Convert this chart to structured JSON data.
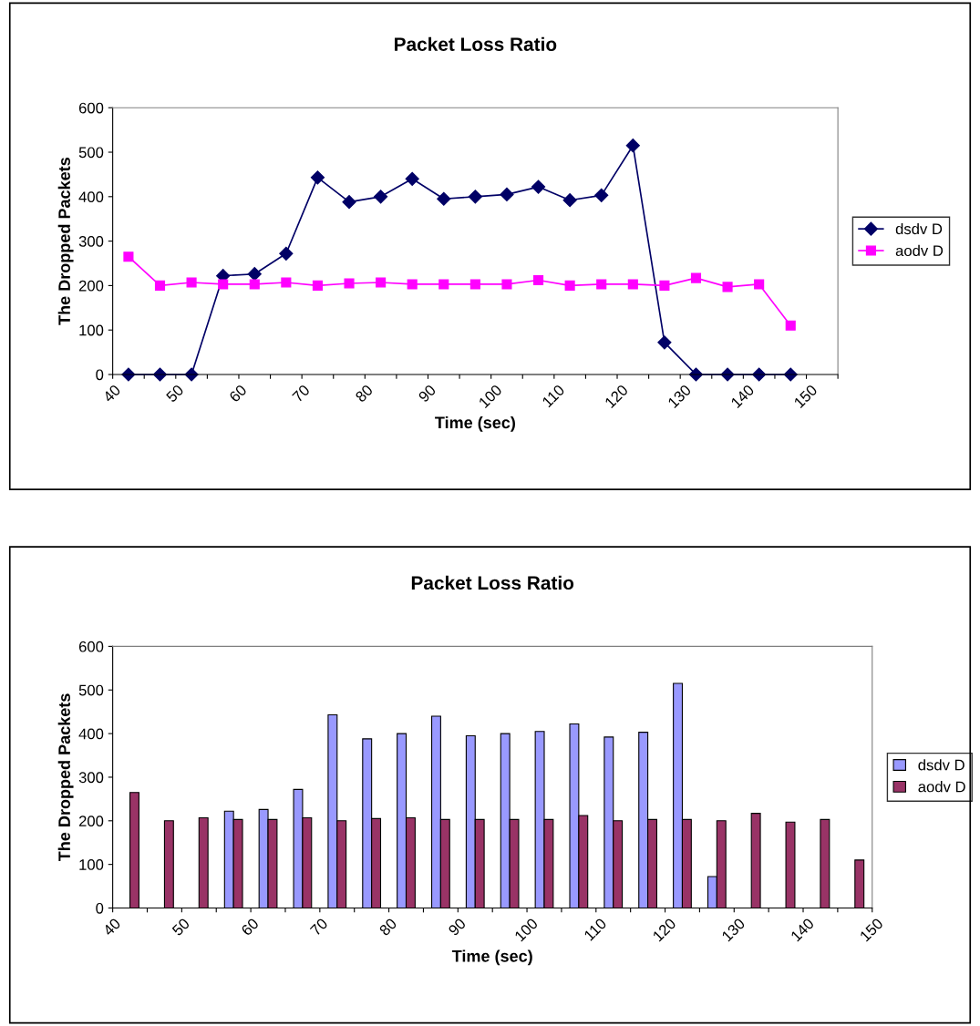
{
  "chart_data": [
    {
      "type": "line",
      "title": "Packet Loss Ratio",
      "xlabel": "Time (sec)",
      "ylabel": "The Dropped Packets",
      "x": [
        42.5,
        47.5,
        52.5,
        57.5,
        62.5,
        67.5,
        72.5,
        77.5,
        82.5,
        87.5,
        92.5,
        97.5,
        102.5,
        107.5,
        112.5,
        117.5,
        122.5,
        127.5,
        132.5,
        137.5,
        142.5,
        147.5
      ],
      "series": [
        {
          "name": "dsdv D",
          "color": "#000066",
          "marker": "diamond",
          "values": [
            0,
            0,
            0,
            222,
            226,
            272,
            443,
            388,
            400,
            440,
            395,
            400,
            405,
            422,
            392,
            403,
            515,
            72,
            0,
            0,
            0,
            0
          ]
        },
        {
          "name": "aodv D",
          "color": "#ff00ff",
          "marker": "square",
          "values": [
            265,
            200,
            207,
            203,
            203,
            207,
            200,
            205,
            207,
            203,
            203,
            203,
            203,
            212,
            200,
            203,
            203,
            200,
            217,
            197,
            203,
            110
          ]
        }
      ],
      "xlim": [
        40,
        155
      ],
      "xticks": [
        40,
        {
          "value": 45,
          "label": null
        },
        50,
        {
          "value": 55,
          "label": null
        },
        60,
        {
          "value": 65,
          "label": null
        },
        70,
        {
          "value": 75,
          "label": null
        },
        80,
        {
          "value": 85,
          "label": null
        },
        90,
        {
          "value": 95,
          "label": null
        },
        100,
        {
          "value": 105,
          "label": null
        },
        110,
        {
          "value": 115,
          "label": null
        },
        120,
        {
          "value": 125,
          "label": null
        },
        130,
        {
          "value": 135,
          "label": null
        },
        140,
        {
          "value": 145,
          "label": null
        },
        150,
        {
          "value": 155,
          "label": null
        }
      ],
      "ylim": [
        0,
        600
      ],
      "yticks": [
        0,
        100,
        200,
        300,
        400,
        500,
        600
      ],
      "grid": false,
      "legend": "right",
      "line_style": "solid"
    },
    {
      "type": "bar",
      "title": "Packet Loss Ratio",
      "xlabel": "Time (sec)",
      "ylabel": "The Dropped Packets",
      "x": [
        42.5,
        47.5,
        52.5,
        57.5,
        62.5,
        67.5,
        72.5,
        77.5,
        82.5,
        87.5,
        92.5,
        97.5,
        102.5,
        107.5,
        112.5,
        117.5,
        122.5,
        127.5,
        132.5,
        137.5,
        142.5,
        147.5
      ],
      "series": [
        {
          "name": "dsdv D",
          "color": "#9999ff",
          "values": [
            null,
            null,
            null,
            222,
            226,
            272,
            443,
            388,
            400,
            440,
            395,
            400,
            405,
            422,
            392,
            403,
            515,
            72,
            null,
            null,
            null,
            null
          ]
        },
        {
          "name": "aodv D",
          "color": "#993366",
          "values": [
            265,
            200,
            207,
            203,
            203,
            207,
            200,
            205,
            207,
            203,
            203,
            203,
            203,
            212,
            200,
            203,
            203,
            200,
            217,
            197,
            203,
            110
          ]
        }
      ],
      "xlim": [
        40,
        150
      ],
      "xticks": [
        40,
        {
          "value": 45,
          "label": null
        },
        50,
        {
          "value": 55,
          "label": null
        },
        60,
        {
          "value": 65,
          "label": null
        },
        70,
        {
          "value": 75,
          "label": null
        },
        80,
        {
          "value": 85,
          "label": null
        },
        90,
        {
          "value": 95,
          "label": null
        },
        100,
        {
          "value": 105,
          "label": null
        },
        110,
        {
          "value": 115,
          "label": null
        },
        120,
        {
          "value": 125,
          "label": null
        },
        130,
        {
          "value": 135,
          "label": null
        },
        140,
        {
          "value": 145,
          "label": null
        },
        150
      ],
      "ylim": [
        0,
        600
      ],
      "yticks": [
        0,
        100,
        200,
        300,
        400,
        500,
        600
      ],
      "grid": false,
      "legend": "right"
    }
  ]
}
